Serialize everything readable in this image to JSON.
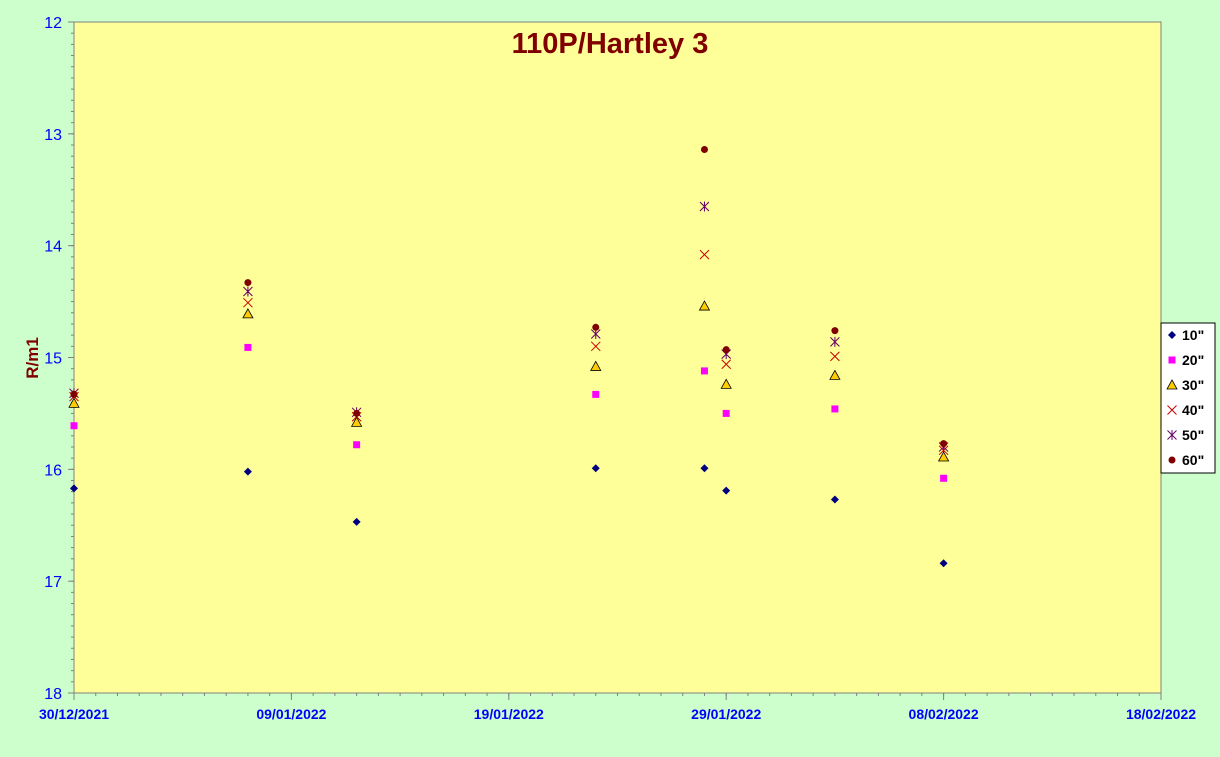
{
  "chart_data": {
    "type": "scatter",
    "title": "110P/Hartley 3",
    "ylabel": "R/m1",
    "xlabel": "",
    "x_axis_type": "date",
    "xlim": [
      "2021-12-30",
      "2022-02-18"
    ],
    "x_tick_labels": [
      "30/12/2021",
      "09/01/2022",
      "19/01/2022",
      "29/01/2022",
      "08/02/2022",
      "18/02/2022"
    ],
    "x_ticks": [
      "2021-12-30",
      "2022-01-09",
      "2022-01-19",
      "2022-01-29",
      "2022-02-08",
      "2022-02-18"
    ],
    "ylim": [
      12,
      18
    ],
    "y_inverted": true,
    "y_ticks": [
      "12",
      "13",
      "14",
      "15",
      "16",
      "17",
      "18"
    ],
    "y_tick_values": [
      12,
      13,
      14,
      15,
      16,
      17,
      18
    ],
    "grid": false,
    "legend_position": "right",
    "colors": {
      "background": "#ccffcc",
      "plot_area": "#ffff99",
      "title": "#800000",
      "axis_labels": "#0000ff",
      "axis_title": "#800000"
    },
    "series": [
      {
        "name": "10\"",
        "marker": "diamond",
        "color": "#000080",
        "points": [
          [
            "2021-12-30",
            16.17
          ],
          [
            "2022-01-07",
            16.02
          ],
          [
            "2022-01-12",
            16.47
          ],
          [
            "2022-01-23",
            15.99
          ],
          [
            "2022-01-28",
            15.99
          ],
          [
            "2022-01-29",
            16.19
          ],
          [
            "2022-02-03",
            16.27
          ],
          [
            "2022-02-08",
            16.84
          ]
        ]
      },
      {
        "name": "20\"",
        "marker": "square",
        "color": "#ff00ff",
        "points": [
          [
            "2021-12-30",
            15.61
          ],
          [
            "2022-01-07",
            14.91
          ],
          [
            "2022-01-12",
            15.78
          ],
          [
            "2022-01-23",
            15.33
          ],
          [
            "2022-01-28",
            15.12
          ],
          [
            "2022-01-29",
            15.5
          ],
          [
            "2022-02-03",
            15.46
          ],
          [
            "2022-02-08",
            16.08
          ]
        ]
      },
      {
        "name": "30\"",
        "marker": "triangle",
        "color": "#ffcc00",
        "points": [
          [
            "2021-12-30",
            15.41
          ],
          [
            "2022-01-07",
            14.61
          ],
          [
            "2022-01-12",
            15.58
          ],
          [
            "2022-01-23",
            15.08
          ],
          [
            "2022-01-28",
            14.54
          ],
          [
            "2022-01-29",
            15.24
          ],
          [
            "2022-02-03",
            15.16
          ],
          [
            "2022-02-08",
            15.89
          ]
        ]
      },
      {
        "name": "40\"",
        "marker": "x",
        "color": "#cc0000",
        "points": [
          [
            "2021-12-30",
            15.35
          ],
          [
            "2022-01-07",
            14.51
          ],
          [
            "2022-01-12",
            15.53
          ],
          [
            "2022-01-23",
            14.9
          ],
          [
            "2022-01-28",
            14.08
          ],
          [
            "2022-01-29",
            15.06
          ],
          [
            "2022-02-03",
            14.99
          ],
          [
            "2022-02-08",
            15.83
          ]
        ]
      },
      {
        "name": "50\"",
        "marker": "star",
        "color": "#660066",
        "points": [
          [
            "2021-12-30",
            15.32
          ],
          [
            "2022-01-07",
            14.41
          ],
          [
            "2022-01-12",
            15.49
          ],
          [
            "2022-01-23",
            14.79
          ],
          [
            "2022-01-28",
            13.65
          ],
          [
            "2022-01-29",
            14.97
          ],
          [
            "2022-02-03",
            14.86
          ],
          [
            "2022-02-08",
            15.8
          ]
        ]
      },
      {
        "name": "60\"",
        "marker": "circle",
        "color": "#800000",
        "points": [
          [
            "2021-12-30",
            15.33
          ],
          [
            "2022-01-07",
            14.33
          ],
          [
            "2022-01-12",
            15.5
          ],
          [
            "2022-01-23",
            14.73
          ],
          [
            "2022-01-28",
            13.14
          ],
          [
            "2022-01-29",
            14.93
          ],
          [
            "2022-02-03",
            14.76
          ],
          [
            "2022-02-08",
            15.77
          ]
        ]
      }
    ]
  }
}
